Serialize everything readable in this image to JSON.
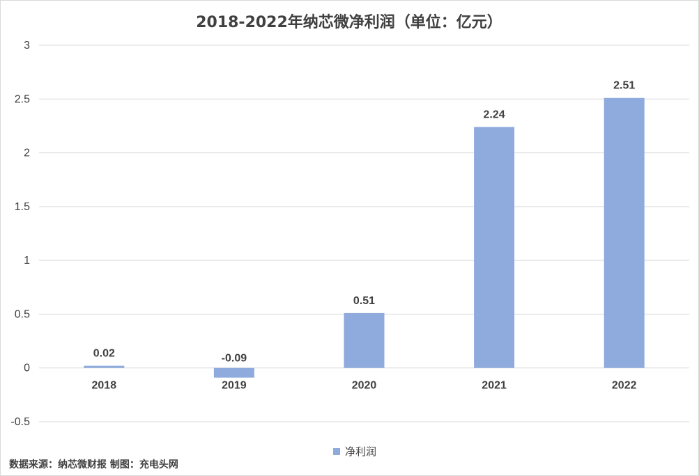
{
  "chart_data": {
    "type": "bar",
    "title": "2018-2022年纳芯微净利润（单位：亿元）",
    "categories": [
      "2018",
      "2019",
      "2020",
      "2021",
      "2022"
    ],
    "series": [
      {
        "name": "净利润",
        "values": [
          0.02,
          -0.09,
          0.51,
          2.24,
          2.51
        ],
        "labels": [
          "0.02",
          "-0.09",
          "0.51",
          "2.24",
          "2.51"
        ]
      }
    ],
    "ylim": [
      -0.5,
      3
    ],
    "yticks": [
      3,
      2.5,
      2,
      1.5,
      1,
      0.5,
      0,
      -0.5
    ],
    "ytick_labels": [
      "3",
      "2.5",
      "2",
      "1.5",
      "1",
      "0.5",
      "0",
      "-0.5"
    ],
    "xlabel": "",
    "ylabel": "",
    "grid": true,
    "legend": "bottom-center",
    "bar_color": "#8faadc"
  },
  "source_note": "数据来源：纳芯微财报 制图：充电头网"
}
